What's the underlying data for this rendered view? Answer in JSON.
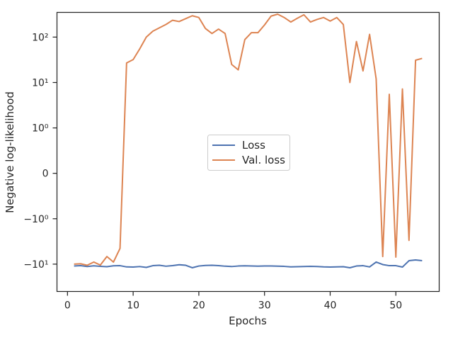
{
  "chart_data": {
    "type": "line",
    "xlabel": "Epochs",
    "ylabel": "Negative log-likelihood",
    "xlim": [
      -1.6,
      56.6
    ],
    "xticks": [
      0,
      10,
      20,
      30,
      40,
      50
    ],
    "xtick_labels": [
      "0",
      "10",
      "20",
      "30",
      "40",
      "50"
    ],
    "yscale": "symlog",
    "ylim": [
      -40,
      350
    ],
    "yticks": [
      -10,
      -1,
      0,
      1,
      10,
      100
    ],
    "ytick_labels": [
      "−10¹",
      "−10⁰",
      "0",
      "10⁰",
      "10¹",
      "10²"
    ],
    "grid": false,
    "legend_position": "center",
    "x": [
      1,
      2,
      3,
      4,
      5,
      6,
      7,
      8,
      9,
      10,
      11,
      12,
      13,
      14,
      15,
      16,
      17,
      18,
      19,
      20,
      21,
      22,
      23,
      24,
      25,
      26,
      27,
      28,
      29,
      30,
      31,
      32,
      33,
      34,
      35,
      36,
      37,
      38,
      39,
      40,
      41,
      42,
      43,
      44,
      45,
      46,
      47,
      48,
      49,
      50,
      51,
      52,
      53,
      54
    ],
    "series": [
      {
        "name": "Loss",
        "color": "#4c72b0",
        "values": [
          -11.0,
          -10.8,
          -11.3,
          -10.9,
          -11.2,
          -11.4,
          -10.9,
          -10.8,
          -11.5,
          -11.6,
          -11.3,
          -11.8,
          -10.8,
          -10.6,
          -11.1,
          -10.8,
          -10.3,
          -10.6,
          -12.0,
          -11.0,
          -10.7,
          -10.6,
          -10.8,
          -11.1,
          -11.3,
          -11.0,
          -10.9,
          -11.0,
          -11.1,
          -11.0,
          -11.0,
          -11.1,
          -11.2,
          -11.5,
          -11.4,
          -11.3,
          -11.2,
          -11.3,
          -11.5,
          -11.6,
          -11.5,
          -11.4,
          -12.0,
          -11.0,
          -10.8,
          -11.5,
          -9.0,
          -10.2,
          -10.8,
          -10.8,
          -11.6,
          -8.4,
          -8.1,
          -8.4
        ],
        "stroke_width": 2
      },
      {
        "name": "Val. loss",
        "color": "#dd8452",
        "values": [
          -10.0,
          -9.8,
          -10.6,
          -9.0,
          -10.5,
          -6.8,
          -9.0,
          -4.5,
          27,
          32,
          55,
          100,
          135,
          160,
          190,
          235,
          220,
          255,
          295,
          270,
          155,
          120,
          150,
          120,
          25,
          19,
          88,
          125,
          125,
          185,
          290,
          320,
          270,
          215,
          260,
          310,
          215,
          245,
          270,
          225,
          270,
          190,
          10,
          80,
          18,
          115,
          12,
          -6.8,
          5.5,
          -7.0,
          7.2,
          -3.0,
          31,
          34
        ],
        "stroke_width": 2
      }
    ]
  }
}
